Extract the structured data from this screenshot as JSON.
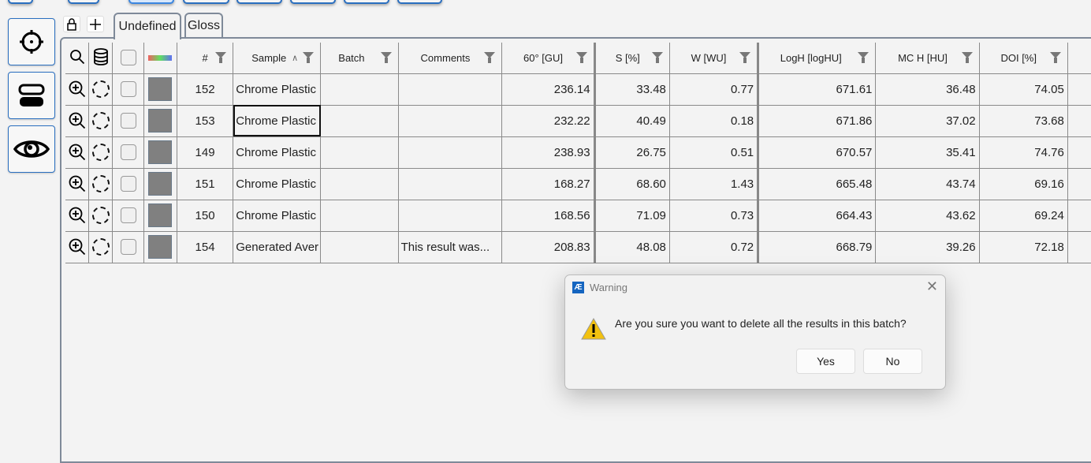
{
  "toolbar": {
    "tabs": [
      "Undefined",
      "Gloss"
    ]
  },
  "table": {
    "headers": [
      "#",
      "Sample",
      "Batch",
      "Comments",
      "60° [GU]",
      "S [%]",
      "W [WU]",
      "LogH [logHU]",
      "MC H [HU]",
      "DOI [%]"
    ],
    "rows": [
      {
        "id": "152",
        "sample": "Chrome Plastic",
        "batch": "",
        "comments": "",
        "g60": "236.14",
        "s": "33.48",
        "w": "0.77",
        "logh": "671.61",
        "mch": "36.48",
        "doi": "74.05"
      },
      {
        "id": "153",
        "sample": "Chrome Plastic",
        "batch": "",
        "comments": "",
        "g60": "232.22",
        "s": "40.49",
        "w": "0.18",
        "logh": "671.86",
        "mch": "37.02",
        "doi": "73.68"
      },
      {
        "id": "149",
        "sample": "Chrome Plastic",
        "batch": "",
        "comments": "",
        "g60": "238.93",
        "s": "26.75",
        "w": "0.51",
        "logh": "670.57",
        "mch": "35.41",
        "doi": "74.76"
      },
      {
        "id": "151",
        "sample": "Chrome Plastic",
        "batch": "",
        "comments": "",
        "g60": "168.27",
        "s": "68.60",
        "w": "1.43",
        "logh": "665.48",
        "mch": "43.74",
        "doi": "69.16"
      },
      {
        "id": "150",
        "sample": "Chrome Plastic",
        "batch": "",
        "comments": "",
        "g60": "168.56",
        "s": "71.09",
        "w": "0.73",
        "logh": "664.43",
        "mch": "43.62",
        "doi": "69.24"
      },
      {
        "id": "154",
        "sample": "Generated Aver",
        "batch": "",
        "comments": "This result was...",
        "g60": "208.83",
        "s": "48.08",
        "w": "0.72",
        "logh": "668.79",
        "mch": "39.26",
        "doi": "72.18"
      }
    ]
  },
  "dialog": {
    "title": "Warning",
    "message": "Are you sure you want to delete all the results in this batch?",
    "yes": "Yes",
    "no": "No"
  },
  "colors": {
    "accent": "#2a6fc0",
    "swatch": "#808080"
  }
}
